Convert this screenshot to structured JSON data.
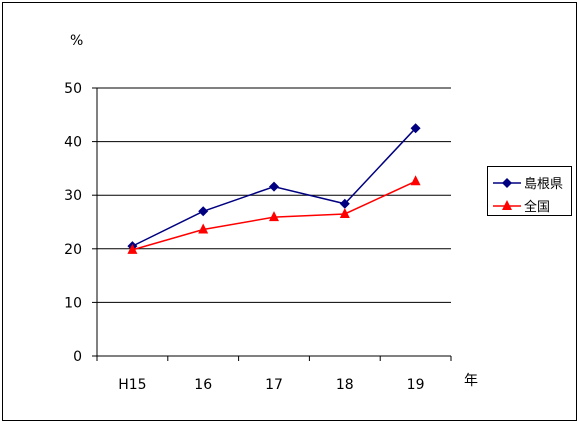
{
  "chart_data": {
    "type": "line",
    "categories": [
      "H15",
      "16",
      "17",
      "18",
      "19"
    ],
    "series": [
      {
        "name": "島根県",
        "values": [
          20.5,
          27.0,
          31.6,
          28.4,
          42.5
        ],
        "color": "#000080",
        "marker": "diamond"
      },
      {
        "name": "全国",
        "values": [
          19.8,
          23.6,
          25.9,
          26.5,
          32.6
        ],
        "color": "#ff0000",
        "marker": "triangle"
      }
    ],
    "title": "",
    "ylabel": "%",
    "xlabel": "年",
    "ylim": [
      0,
      50
    ],
    "yticks": [
      0,
      10,
      20,
      30,
      40,
      50
    ],
    "grid": true,
    "legend_position": "right"
  }
}
